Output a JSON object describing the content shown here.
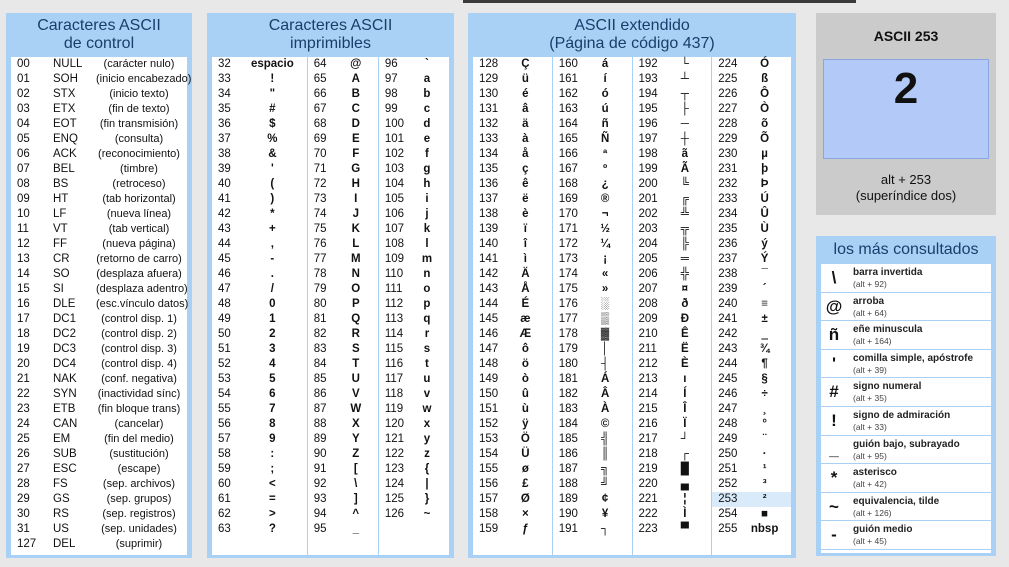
{
  "control": {
    "title1": "Caracteres ASCII",
    "title2": "de control",
    "rows": [
      [
        "00",
        "NULL",
        "(carácter nulo)"
      ],
      [
        "01",
        "SOH",
        "(inicio encabezado)"
      ],
      [
        "02",
        "STX",
        "(inicio texto)"
      ],
      [
        "03",
        "ETX",
        "(fin de texto)"
      ],
      [
        "04",
        "EOT",
        "(fin transmisión)"
      ],
      [
        "05",
        "ENQ",
        "(consulta)"
      ],
      [
        "06",
        "ACK",
        "(reconocimiento)"
      ],
      [
        "07",
        "BEL",
        "(timbre)"
      ],
      [
        "08",
        "BS",
        "(retroceso)"
      ],
      [
        "09",
        "HT",
        "(tab horizontal)"
      ],
      [
        "10",
        "LF",
        "(nueva línea)"
      ],
      [
        "11",
        "VT",
        "(tab vertical)"
      ],
      [
        "12",
        "FF",
        "(nueva página)"
      ],
      [
        "13",
        "CR",
        "(retorno de carro)"
      ],
      [
        "14",
        "SO",
        "(desplaza afuera)"
      ],
      [
        "15",
        "SI",
        "(desplaza adentro)"
      ],
      [
        "16",
        "DLE",
        "(esc.vínculo datos)"
      ],
      [
        "17",
        "DC1",
        "(control disp. 1)"
      ],
      [
        "18",
        "DC2",
        "(control disp. 2)"
      ],
      [
        "19",
        "DC3",
        "(control disp. 3)"
      ],
      [
        "20",
        "DC4",
        "(control disp. 4)"
      ],
      [
        "21",
        "NAK",
        "(conf. negativa)"
      ],
      [
        "22",
        "SYN",
        "(inactividad sínc)"
      ],
      [
        "23",
        "ETB",
        "(fin bloque trans)"
      ],
      [
        "24",
        "CAN",
        "(cancelar)"
      ],
      [
        "25",
        "EM",
        "(fin del medio)"
      ],
      [
        "26",
        "SUB",
        "(sustitución)"
      ],
      [
        "27",
        "ESC",
        "(escape)"
      ],
      [
        "28",
        "FS",
        "(sep. archivos)"
      ],
      [
        "29",
        "GS",
        "(sep. grupos)"
      ],
      [
        "30",
        "RS",
        "(sep. registros)"
      ],
      [
        "31",
        "US",
        "(sep. unidades)"
      ],
      [
        "127",
        "DEL",
        "(suprimir)"
      ]
    ]
  },
  "printable": {
    "title1": "Caracteres ASCII",
    "title2": "imprimibles",
    "cols": [
      [
        [
          "32",
          "espacio"
        ],
        [
          "33",
          "!"
        ],
        [
          "34",
          "\""
        ],
        [
          "35",
          "#"
        ],
        [
          "36",
          "$"
        ],
        [
          "37",
          "%"
        ],
        [
          "38",
          "&"
        ],
        [
          "39",
          "'"
        ],
        [
          "40",
          "("
        ],
        [
          "41",
          ")"
        ],
        [
          "42",
          "*"
        ],
        [
          "43",
          "+"
        ],
        [
          "44",
          ","
        ],
        [
          "45",
          "-"
        ],
        [
          "46",
          "."
        ],
        [
          "47",
          "/"
        ],
        [
          "48",
          "0"
        ],
        [
          "49",
          "1"
        ],
        [
          "50",
          "2"
        ],
        [
          "51",
          "3"
        ],
        [
          "52",
          "4"
        ],
        [
          "53",
          "5"
        ],
        [
          "54",
          "6"
        ],
        [
          "55",
          "7"
        ],
        [
          "56",
          "8"
        ],
        [
          "57",
          "9"
        ],
        [
          "58",
          ":"
        ],
        [
          "59",
          ";"
        ],
        [
          "60",
          "<"
        ],
        [
          "61",
          "="
        ],
        [
          "62",
          ">"
        ],
        [
          "63",
          "?"
        ]
      ],
      [
        [
          "64",
          "@"
        ],
        [
          "65",
          "A"
        ],
        [
          "66",
          "B"
        ],
        [
          "67",
          "C"
        ],
        [
          "68",
          "D"
        ],
        [
          "69",
          "E"
        ],
        [
          "70",
          "F"
        ],
        [
          "71",
          "G"
        ],
        [
          "72",
          "H"
        ],
        [
          "73",
          "I"
        ],
        [
          "74",
          "J"
        ],
        [
          "75",
          "K"
        ],
        [
          "76",
          "L"
        ],
        [
          "77",
          "M"
        ],
        [
          "78",
          "N"
        ],
        [
          "79",
          "O"
        ],
        [
          "80",
          "P"
        ],
        [
          "81",
          "Q"
        ],
        [
          "82",
          "R"
        ],
        [
          "83",
          "S"
        ],
        [
          "84",
          "T"
        ],
        [
          "85",
          "U"
        ],
        [
          "86",
          "V"
        ],
        [
          "87",
          "W"
        ],
        [
          "88",
          "X"
        ],
        [
          "89",
          "Y"
        ],
        [
          "90",
          "Z"
        ],
        [
          "91",
          "["
        ],
        [
          "92",
          "\\"
        ],
        [
          "93",
          "]"
        ],
        [
          "94",
          "^"
        ],
        [
          "95",
          "_"
        ]
      ],
      [
        [
          "96",
          "`"
        ],
        [
          "97",
          "a"
        ],
        [
          "98",
          "b"
        ],
        [
          "99",
          "c"
        ],
        [
          "100",
          "d"
        ],
        [
          "101",
          "e"
        ],
        [
          "102",
          "f"
        ],
        [
          "103",
          "g"
        ],
        [
          "104",
          "h"
        ],
        [
          "105",
          "i"
        ],
        [
          "106",
          "j"
        ],
        [
          "107",
          "k"
        ],
        [
          "108",
          "l"
        ],
        [
          "109",
          "m"
        ],
        [
          "110",
          "n"
        ],
        [
          "111",
          "o"
        ],
        [
          "112",
          "p"
        ],
        [
          "113",
          "q"
        ],
        [
          "114",
          "r"
        ],
        [
          "115",
          "s"
        ],
        [
          "116",
          "t"
        ],
        [
          "117",
          "u"
        ],
        [
          "118",
          "v"
        ],
        [
          "119",
          "w"
        ],
        [
          "120",
          "x"
        ],
        [
          "121",
          "y"
        ],
        [
          "122",
          "z"
        ],
        [
          "123",
          "{"
        ],
        [
          "124",
          "|"
        ],
        [
          "125",
          "}"
        ],
        [
          "126",
          "~"
        ]
      ]
    ]
  },
  "extended": {
    "title1": "ASCII extendido",
    "title2": "(Página de código 437)",
    "cols": [
      [
        [
          "128",
          "Ç"
        ],
        [
          "129",
          "ü"
        ],
        [
          "130",
          "é"
        ],
        [
          "131",
          "â"
        ],
        [
          "132",
          "ä"
        ],
        [
          "133",
          "à"
        ],
        [
          "134",
          "å"
        ],
        [
          "135",
          "ç"
        ],
        [
          "136",
          "ê"
        ],
        [
          "137",
          "ë"
        ],
        [
          "138",
          "è"
        ],
        [
          "139",
          "ï"
        ],
        [
          "140",
          "î"
        ],
        [
          "141",
          "ì"
        ],
        [
          "142",
          "Ä"
        ],
        [
          "143",
          "Å"
        ],
        [
          "144",
          "É"
        ],
        [
          "145",
          "æ"
        ],
        [
          "146",
          "Æ"
        ],
        [
          "147",
          "ô"
        ],
        [
          "148",
          "ö"
        ],
        [
          "149",
          "ò"
        ],
        [
          "150",
          "û"
        ],
        [
          "151",
          "ù"
        ],
        [
          "152",
          "ÿ"
        ],
        [
          "153",
          "Ö"
        ],
        [
          "154",
          "Ü"
        ],
        [
          "155",
          "ø"
        ],
        [
          "156",
          "£"
        ],
        [
          "157",
          "Ø"
        ],
        [
          "158",
          "×"
        ],
        [
          "159",
          "ƒ"
        ]
      ],
      [
        [
          "160",
          "á"
        ],
        [
          "161",
          "í"
        ],
        [
          "162",
          "ó"
        ],
        [
          "163",
          "ú"
        ],
        [
          "164",
          "ñ"
        ],
        [
          "165",
          "Ñ"
        ],
        [
          "166",
          "ª"
        ],
        [
          "167",
          "º"
        ],
        [
          "168",
          "¿"
        ],
        [
          "169",
          "®"
        ],
        [
          "170",
          "¬"
        ],
        [
          "171",
          "½"
        ],
        [
          "172",
          "¼"
        ],
        [
          "173",
          "¡"
        ],
        [
          "174",
          "«"
        ],
        [
          "175",
          "»"
        ],
        [
          "176",
          "░"
        ],
        [
          "177",
          "▒"
        ],
        [
          "178",
          "▓"
        ],
        [
          "179",
          "│"
        ],
        [
          "180",
          "┤"
        ],
        [
          "181",
          "Á"
        ],
        [
          "182",
          "Â"
        ],
        [
          "183",
          "À"
        ],
        [
          "184",
          "©"
        ],
        [
          "185",
          "╣"
        ],
        [
          "186",
          "║"
        ],
        [
          "187",
          "╗"
        ],
        [
          "188",
          "╝"
        ],
        [
          "189",
          "¢"
        ],
        [
          "190",
          "¥"
        ],
        [
          "191",
          "┐"
        ]
      ],
      [
        [
          "192",
          "└"
        ],
        [
          "193",
          "┴"
        ],
        [
          "194",
          "┬"
        ],
        [
          "195",
          "├"
        ],
        [
          "196",
          "─"
        ],
        [
          "197",
          "┼"
        ],
        [
          "198",
          "ã"
        ],
        [
          "199",
          "Ã"
        ],
        [
          "200",
          "╚"
        ],
        [
          "201",
          "╔"
        ],
        [
          "202",
          "╩"
        ],
        [
          "203",
          "╦"
        ],
        [
          "204",
          "╠"
        ],
        [
          "205",
          "═"
        ],
        [
          "206",
          "╬"
        ],
        [
          "207",
          "¤"
        ],
        [
          "208",
          "ð"
        ],
        [
          "209",
          "Ð"
        ],
        [
          "210",
          "Ê"
        ],
        [
          "211",
          "Ë"
        ],
        [
          "212",
          "È"
        ],
        [
          "213",
          "ı"
        ],
        [
          "214",
          "Í"
        ],
        [
          "215",
          "Î"
        ],
        [
          "216",
          "Ï"
        ],
        [
          "217",
          "┘"
        ],
        [
          "218",
          "┌"
        ],
        [
          "219",
          "█"
        ],
        [
          "220",
          "▄"
        ],
        [
          "221",
          "¦"
        ],
        [
          "222",
          "Ì"
        ],
        [
          "223",
          "▀"
        ]
      ],
      [
        [
          "224",
          "Ó"
        ],
        [
          "225",
          "ß"
        ],
        [
          "226",
          "Ô"
        ],
        [
          "227",
          "Ò"
        ],
        [
          "228",
          "õ"
        ],
        [
          "229",
          "Õ"
        ],
        [
          "230",
          "µ"
        ],
        [
          "231",
          "þ"
        ],
        [
          "232",
          "Þ"
        ],
        [
          "233",
          "Ú"
        ],
        [
          "234",
          "Û"
        ],
        [
          "235",
          "Ù"
        ],
        [
          "236",
          "ý"
        ],
        [
          "237",
          "Ý"
        ],
        [
          "238",
          "¯"
        ],
        [
          "239",
          "´"
        ],
        [
          "240",
          "≡"
        ],
        [
          "241",
          "±"
        ],
        [
          "242",
          "‗"
        ],
        [
          "243",
          "¾"
        ],
        [
          "244",
          "¶"
        ],
        [
          "245",
          "§"
        ],
        [
          "246",
          "÷"
        ],
        [
          "247",
          "¸"
        ],
        [
          "248",
          "°"
        ],
        [
          "249",
          "¨"
        ],
        [
          "250",
          "·"
        ],
        [
          "251",
          "¹"
        ],
        [
          "252",
          "³"
        ],
        [
          "253",
          "²"
        ],
        [
          "254",
          "■"
        ],
        [
          "255",
          "nbsp"
        ]
      ]
    ],
    "highlight": "253"
  },
  "selected": {
    "title": "ASCII 253",
    "char": "2",
    "alt": "alt + 253",
    "desc": "(superíndice dos)"
  },
  "most": {
    "title": "los más consultados",
    "items": [
      [
        "\\",
        "barra invertida",
        "(alt + 92)"
      ],
      [
        "@",
        "arroba",
        "(alt + 64)"
      ],
      [
        "ñ",
        "eñe minuscula",
        "(alt + 164)"
      ],
      [
        "'",
        "comilla simple, apóstrofe",
        "(alt + 39)"
      ],
      [
        "#",
        "signo numeral",
        "(alt + 35)"
      ],
      [
        "!",
        "signo de admiración",
        "(alt + 33)"
      ],
      [
        "_",
        "guión bajo, subrayado",
        "(alt + 95)"
      ],
      [
        "*",
        "asterisco",
        "(alt + 42)"
      ],
      [
        "~",
        "equivalencia, tilde",
        "(alt + 126)"
      ],
      [
        "-",
        "guión medio",
        "(alt + 45)"
      ]
    ]
  },
  "colors": {
    "panel": "#a9d1f5",
    "title": "#1a3e6c",
    "big": "#b3c9f8"
  }
}
